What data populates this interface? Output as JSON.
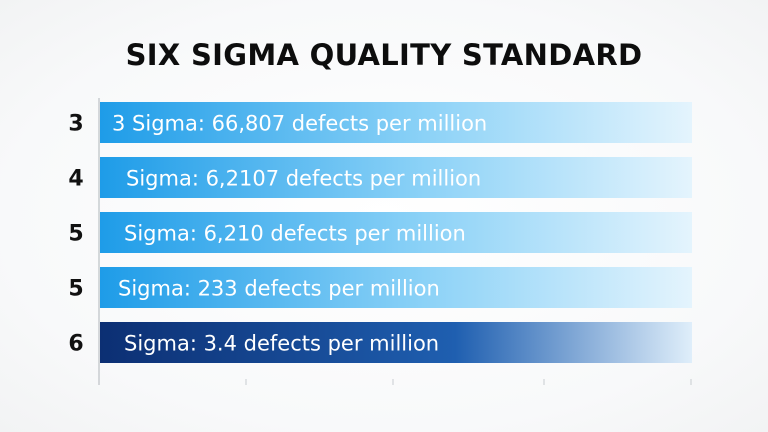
{
  "chart_data": {
    "type": "bar",
    "orientation": "horizontal",
    "title": "SIX SIGMA QUALITY STANDARD",
    "xlabel": "",
    "ylabel": "",
    "categories": [
      "3",
      "4",
      "5",
      "5",
      "6"
    ],
    "values": [
      1,
      1,
      1,
      1,
      1
    ],
    "bar_labels": [
      "3 Sigma: 66,807 defects per million",
      "Sigma: 6,2107 defects per million",
      "Sigma: 6,210 defects per million",
      "Sigma: 233 defects per million",
      "Sigma: 3.4 defects per million"
    ],
    "bar_styles": [
      "light",
      "light",
      "light",
      "light",
      "dark"
    ],
    "colors": {
      "light_start": "#1e9ce8",
      "light_mid": "#8cd2f7",
      "light_end": "#e4f4fd",
      "dark_start": "#0c2f73",
      "dark_mid": "#1f5fb0",
      "dark_end": "#dfeefa",
      "label_light": "#ffffff",
      "label_dark": "#ffffff",
      "category_text": "#111111",
      "axis": "#c8ccd0"
    },
    "grid": true,
    "legend": "none"
  }
}
